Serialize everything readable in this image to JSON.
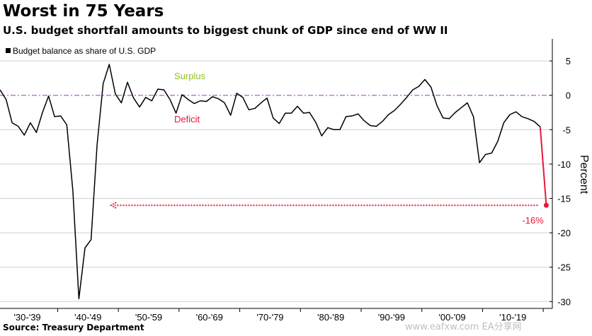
{
  "title": "Worst in 75 Years",
  "subtitle": "U.S. budget shortfall amounts to biggest chunk of GDP since end of WW II",
  "source": "Source: Treasury Department",
  "watermark": "www.eafxw.com  EA分享网",
  "colors": {
    "line": "#000000",
    "highlight": "#e8173a",
    "surplus": "#8dc21f",
    "deficit": "#e8173a",
    "zero_line": "#b05fd0",
    "grid": "#d0d0d0"
  },
  "chart_data": {
    "type": "line",
    "title": "Worst in 75 Years",
    "subtitle": "U.S. budget shortfall amounts to biggest chunk of GDP since end of WW II",
    "ylabel": "Percent",
    "ylim": [
      -31,
      8
    ],
    "yticks": [
      5,
      0,
      -5,
      -10,
      -15,
      -20,
      -25,
      -30
    ],
    "ytick_labels": [
      "5",
      "0",
      "-5",
      "-10",
      "-15",
      "-20",
      "-25",
      "-30"
    ],
    "xlim": [
      1930,
      2021
    ],
    "decade_labels": [
      "'30-'39",
      "'40-'49",
      "'50-'59",
      "'60-'69",
      "'70-'79",
      "'80-'89",
      "'90-'99",
      "'00-'09",
      "'10-'19"
    ],
    "grid": "horizontal",
    "legend_position": "top-left",
    "series": [
      {
        "name": "Budget balance as share of U.S. GDP",
        "x": [
          1930,
          1931,
          1932,
          1933,
          1934,
          1935,
          1936,
          1937,
          1938,
          1939,
          1940,
          1941,
          1942,
          1943,
          1944,
          1945,
          1946,
          1947,
          1948,
          1949,
          1950,
          1951,
          1952,
          1953,
          1954,
          1955,
          1956,
          1957,
          1958,
          1959,
          1960,
          1961,
          1962,
          1963,
          1964,
          1965,
          1966,
          1967,
          1968,
          1969,
          1970,
          1971,
          1972,
          1973,
          1974,
          1975,
          1976,
          1977,
          1978,
          1979,
          1980,
          1981,
          1982,
          1983,
          1984,
          1985,
          1986,
          1987,
          1988,
          1989,
          1990,
          1991,
          1992,
          1993,
          1994,
          1995,
          1996,
          1997,
          1998,
          1999,
          2000,
          2001,
          2002,
          2003,
          2004,
          2005,
          2006,
          2007,
          2008,
          2009,
          2010,
          2011,
          2012,
          2013,
          2014,
          2015,
          2016,
          2017,
          2018,
          2019,
          2020
        ],
        "values": [
          0.8,
          -0.6,
          -4.0,
          -4.5,
          -5.8,
          -4.0,
          -5.4,
          -2.5,
          -0.1,
          -3.1,
          -3.0,
          -4.3,
          -13.9,
          -29.6,
          -22.2,
          -21.0,
          -7.2,
          1.7,
          4.5,
          0.2,
          -1.1,
          1.9,
          -0.4,
          -1.7,
          -0.3,
          -0.8,
          0.9,
          0.8,
          -0.6,
          -2.6,
          0.1,
          -0.6,
          -1.2,
          -0.8,
          -0.9,
          -0.2,
          -0.5,
          -1.1,
          -2.9,
          0.3,
          -0.3,
          -2.1,
          -1.9,
          -1.1,
          -0.4,
          -3.3,
          -4.1,
          -2.6,
          -2.6,
          -1.6,
          -2.6,
          -2.5,
          -3.9,
          -5.9,
          -4.7,
          -5.0,
          -5.0,
          -3.1,
          -3.0,
          -2.7,
          -3.7,
          -4.4,
          -4.5,
          -3.8,
          -2.8,
          -2.2,
          -1.3,
          -0.3,
          0.8,
          1.3,
          2.3,
          1.2,
          -1.5,
          -3.3,
          -3.4,
          -2.5,
          -1.8,
          -1.1,
          -3.1,
          -9.8,
          -8.6,
          -8.4,
          -6.7,
          -4.0,
          -2.8,
          -2.4,
          -3.1,
          -3.4,
          -3.8,
          -4.6,
          -16.0
        ]
      }
    ],
    "annotations": {
      "surplus_label": "Surplus",
      "deficit_label": "Deficit",
      "callout_label": "-16%",
      "callout_value": -16
    }
  }
}
